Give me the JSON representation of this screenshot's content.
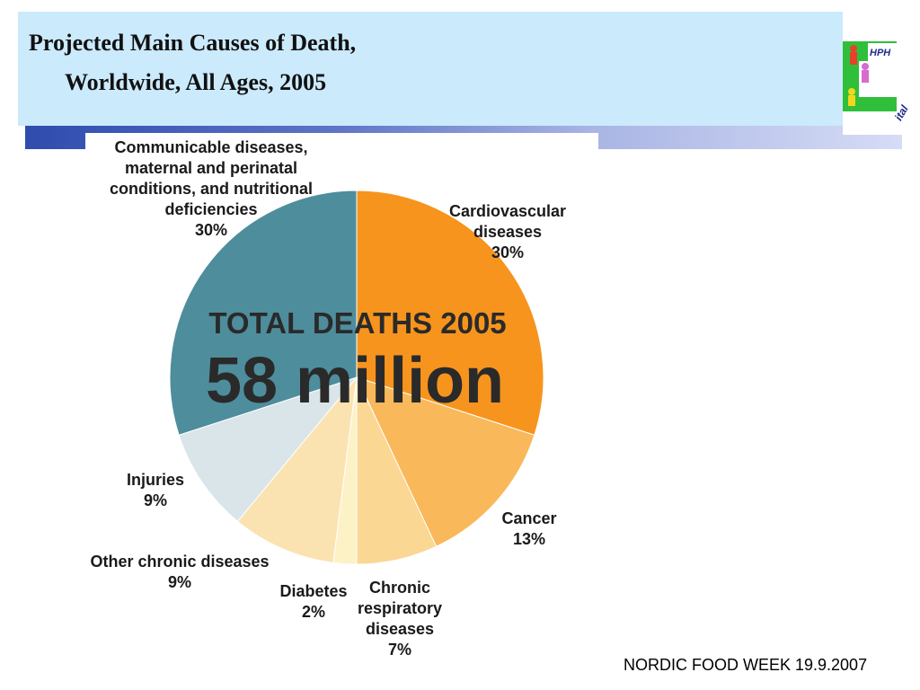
{
  "slide": {
    "title_line1": "Projected Main Causes of Death,",
    "title_line2": "Worldwide, All Ages, 2005",
    "footer": "NORDIC FOOD WEEK 19.9.2007",
    "logo_text": "HPH",
    "logo_partial_text": "ital"
  },
  "chart_data": {
    "type": "pie",
    "center_label_line1": "TOTAL DEATHS 2005",
    "center_label_line2": "58 million",
    "slices": [
      {
        "label_lines": [
          "Cardiovascular",
          "diseases"
        ],
        "value": 30,
        "value_label": "30%",
        "color": "#f7941d"
      },
      {
        "label_lines": [
          "Cancer"
        ],
        "value": 13,
        "value_label": "13%",
        "color": "#f9b85a"
      },
      {
        "label_lines": [
          "Chronic",
          "respiratory",
          "diseases"
        ],
        "value": 7,
        "value_label": "7%",
        "color": "#fbd794"
      },
      {
        "label_lines": [
          "Diabetes"
        ],
        "value": 2,
        "value_label": "2%",
        "color": "#fdf1c6"
      },
      {
        "label_lines": [
          "Other chronic diseases"
        ],
        "value": 9,
        "value_label": "9%",
        "color": "#fbe3b1"
      },
      {
        "label_lines": [
          "Injuries"
        ],
        "value": 9,
        "value_label": "9%",
        "color": "#d9e5e8"
      },
      {
        "label_lines": [
          "Communicable diseases,",
          "maternal and perinatal",
          "conditions, and nutritional",
          "deficiencies"
        ],
        "value": 30,
        "value_label": "30%",
        "color": "#4e8d9c"
      }
    ]
  }
}
